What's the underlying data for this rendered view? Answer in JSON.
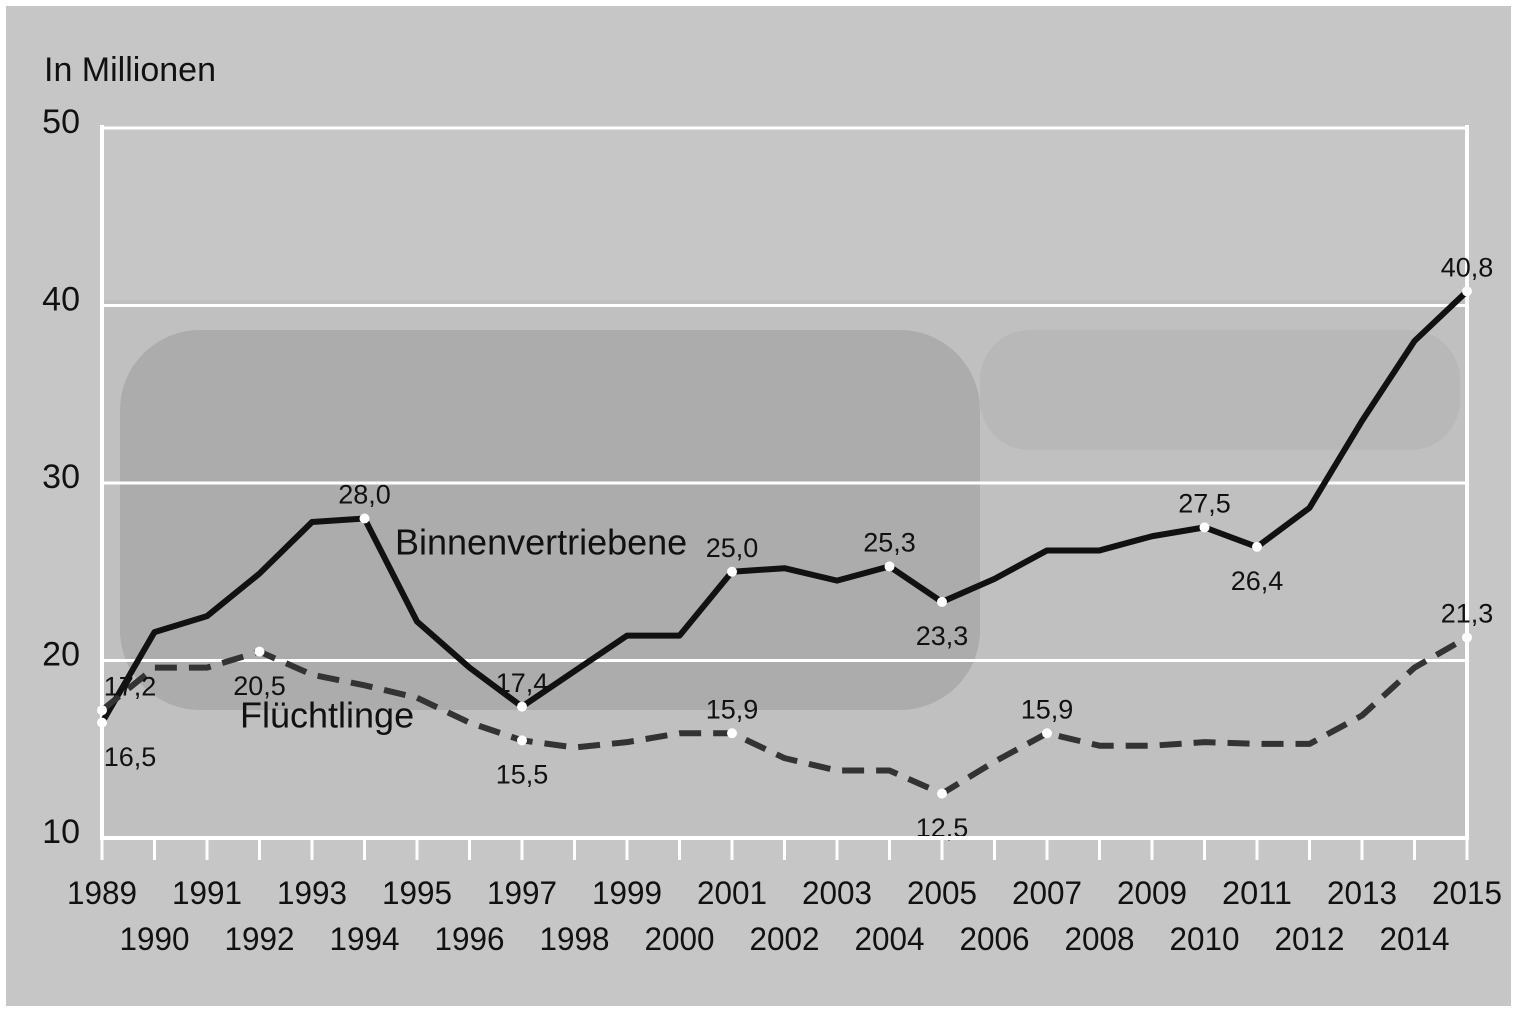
{
  "chart_data": {
    "type": "line",
    "y_label": "In Millionen",
    "categories": [
      "1989",
      "1990",
      "1991",
      "1992",
      "1993",
      "1994",
      "1995",
      "1996",
      "1997",
      "1998",
      "1999",
      "2000",
      "2001",
      "2002",
      "2003",
      "2004",
      "2005",
      "2006",
      "2007",
      "2008",
      "2009",
      "2010",
      "2011",
      "2012",
      "2013",
      "2014",
      "2015"
    ],
    "series": [
      {
        "name": "Binnenvertriebene",
        "color": "#111111",
        "dash": false,
        "values": [
          16.5,
          21.6,
          22.5,
          24.9,
          27.8,
          28.0,
          22.2,
          19.6,
          17.4,
          19.4,
          21.4,
          21.4,
          25.0,
          25.2,
          24.5,
          25.3,
          23.3,
          24.6,
          26.2,
          26.2,
          27.0,
          27.5,
          26.4,
          28.6,
          33.5,
          38.0,
          40.8
        ],
        "value_labels": [
          "16,5",
          null,
          null,
          null,
          null,
          "28,0",
          null,
          null,
          "17,4",
          null,
          null,
          null,
          "25,0",
          null,
          null,
          "25,3",
          "23,3",
          null,
          null,
          null,
          null,
          "27,5",
          "26,4",
          null,
          null,
          null,
          "40,8"
        ]
      },
      {
        "name": "Flüchtlinge",
        "color": "#333333",
        "dash": true,
        "values": [
          17.2,
          19.6,
          19.6,
          20.5,
          19.2,
          18.6,
          17.9,
          16.5,
          15.5,
          15.1,
          15.4,
          15.9,
          15.9,
          14.5,
          13.8,
          13.8,
          12.5,
          14.3,
          15.9,
          15.2,
          15.2,
          15.4,
          15.3,
          15.3,
          16.9,
          19.6,
          21.3
        ],
        "value_labels": [
          "17,2",
          null,
          null,
          "20,5",
          null,
          null,
          null,
          null,
          "15,5",
          null,
          null,
          null,
          "15,9",
          null,
          null,
          null,
          "12,5",
          null,
          "15,9",
          null,
          null,
          null,
          null,
          null,
          null,
          null,
          "21,3"
        ]
      }
    ],
    "ylim": [
      10,
      50
    ],
    "yticks": [
      10,
      20,
      30,
      40,
      50
    ],
    "grid": true
  }
}
